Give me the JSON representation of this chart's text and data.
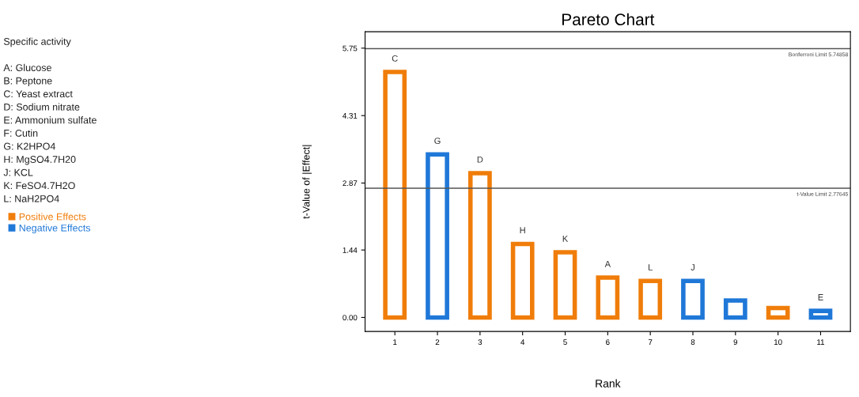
{
  "chart_data": {
    "type": "bar",
    "title": "Pareto Chart",
    "xlabel": "Rank",
    "ylabel": "t-Value of |Effect|",
    "annotations": [
      "Specific activity",
      "A: Glucose",
      "B: Peptone",
      "C: Yeast extract",
      "D: Sodium nitrate",
      "E: Ammonium sulfate",
      "F: Cutin",
      "G: K2HPO4",
      "H: MgSO4.7H20",
      "J: KCL",
      "K: FeSO4.7H2O",
      "L: NaH2PO4"
    ],
    "categories": [
      "1",
      "2",
      "3",
      "4",
      "5",
      "6",
      "7",
      "8",
      "9",
      "10",
      "11"
    ],
    "series": [
      {
        "name": "Positive Effects",
        "color": "#f07d0a",
        "values": [
          5.24,
          null,
          3.08,
          1.57,
          1.39,
          0.85,
          0.78,
          null,
          null,
          0.2,
          null
        ],
        "value_labels": [
          "C",
          null,
          "D",
          "H",
          "K",
          "A",
          "L",
          null,
          null,
          null,
          null
        ]
      },
      {
        "name": "Negative Effects",
        "color": "#1f78d8",
        "values": [
          null,
          3.48,
          null,
          null,
          null,
          null,
          null,
          0.78,
          0.36,
          null,
          0.14
        ],
        "value_labels": [
          null,
          "G",
          null,
          null,
          null,
          null,
          null,
          "J",
          null,
          null,
          "E"
        ]
      }
    ],
    "ylim": [
      -0.3,
      6.1
    ],
    "yticks": [
      {
        "value": 0,
        "label": "0.00"
      },
      1.44,
      2.87,
      4.31,
      5.75
    ],
    "ref_lines": [
      {
        "axis": "y",
        "value": 5.74,
        "label": "Bonferroni Limit 5.74858",
        "color": "#555555"
      },
      {
        "axis": "y",
        "value": 2.76,
        "label": "t-Value Limit 2.77645",
        "color": "#555555"
      }
    ],
    "legend": "left",
    "grid": false
  }
}
